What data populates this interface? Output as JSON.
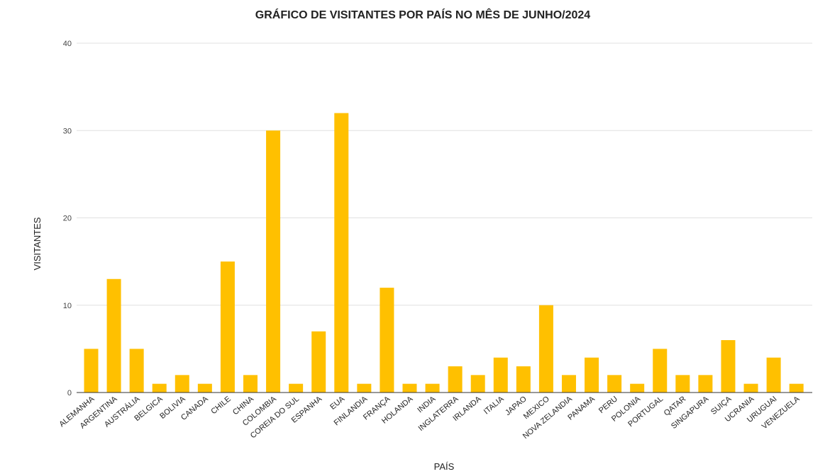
{
  "chart_data": {
    "type": "bar",
    "title": "GRÁFICO DE VISITANTES POR PAÍS NO MÊS DE JUNHO/2024",
    "xlabel": "PAÍS",
    "ylabel": "VISITANTES",
    "ylim": [
      0,
      40
    ],
    "yticks": [
      "0",
      "10",
      "20",
      "30",
      "40"
    ],
    "grid": true,
    "bar_color": "#FFC000",
    "categories": [
      "ALEMANHA",
      "ARGENTINA",
      "AUSTRÁLIA",
      "BELGICA",
      "BOLIVIA",
      "CANADA",
      "CHILE",
      "CHINA",
      "COLOMBIA",
      "COREIA DO SUL",
      "ESPANHA",
      "EUA",
      "FINLANDIA",
      "FRANÇA",
      "HOLANDA",
      "INDIA",
      "INGLATERRA",
      "IRLANDA",
      "ITALIA",
      "JAPAO",
      "MEXICO",
      "NOVA ZELANDIA",
      "PANAMA",
      "PERU",
      "POLONIA",
      "PORTUGAL",
      "QATAR",
      "SINGAPURA",
      "SUIÇA",
      "UCRANIA",
      "URUGUAI",
      "VENEZUELA"
    ],
    "values": [
      5,
      13,
      5,
      1,
      2,
      1,
      15,
      2,
      30,
      1,
      7,
      32,
      1,
      12,
      1,
      1,
      3,
      2,
      4,
      3,
      10,
      2,
      4,
      2,
      1,
      5,
      2,
      2,
      6,
      1,
      4,
      1
    ]
  }
}
